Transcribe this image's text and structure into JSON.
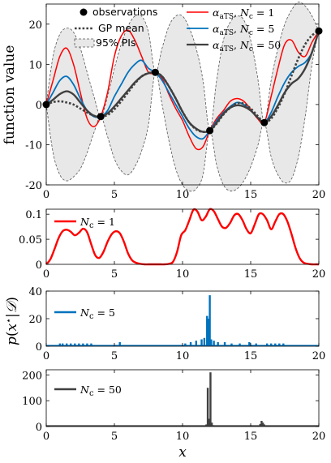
{
  "chart_data": [
    {
      "type": "line",
      "ylabel": "function value",
      "xlim": [
        0,
        20
      ],
      "ylim": [
        -20,
        25
      ],
      "xticks": [
        0,
        5,
        10,
        15,
        20
      ],
      "yticks": [
        -20,
        -10,
        0,
        10,
        20
      ],
      "legend": {
        "placement": "top",
        "entries": [
          "observations",
          "GP mean",
          "95% PIs",
          "α_aTS, N_c = 1",
          "α_aTS, N_c = 5",
          "α_aTS, N_c = 50"
        ]
      },
      "observations": {
        "x": [
          0,
          4,
          8,
          12,
          16,
          20
        ],
        "y": [
          0,
          -3,
          8,
          -6.5,
          -4.5,
          18.3
        ]
      },
      "gp_mean": {
        "x": [
          0,
          0.5,
          1,
          1.5,
          2,
          2.5,
          3,
          3.5,
          4,
          4.5,
          5,
          5.5,
          6,
          6.5,
          7,
          7.5,
          8,
          8.5,
          9,
          9.5,
          10,
          10.5,
          11,
          11.5,
          12,
          12.5,
          13,
          13.5,
          14,
          14.5,
          15,
          15.5,
          16,
          16.5,
          17,
          17.5,
          18,
          18.5,
          19,
          19.5,
          20
        ],
        "y": [
          0,
          0.6,
          0.8,
          0.5,
          0,
          -1,
          -2,
          -2.8,
          -3,
          -2.6,
          -1.2,
          0.8,
          3,
          5.2,
          7,
          7.8,
          8,
          7,
          4.5,
          1.5,
          -1.8,
          -4.5,
          -6.2,
          -6.8,
          -6.5,
          -4.8,
          -2.5,
          -0.8,
          0.3,
          0.2,
          -1,
          -2.8,
          -4.5,
          -3.5,
          -0.8,
          2.8,
          7.2,
          11.5,
          15,
          17.2,
          18.3
        ]
      },
      "pi95": {
        "upper": [
          0,
          12,
          17.5,
          19,
          18,
          14,
          8,
          2,
          -3,
          2,
          9,
          15,
          19.5,
          22,
          22,
          18,
          8,
          14,
          19.5,
          22,
          22,
          19,
          14,
          6,
          -6.5,
          6,
          16,
          20.5,
          22,
          21,
          16,
          7,
          -4.5,
          6,
          14,
          20,
          23.5,
          25.5,
          24.5,
          22,
          18.3
        ],
        "lower": [
          0,
          -12,
          -17.5,
          -19,
          -18,
          -16,
          -12,
          -7,
          -3,
          -8,
          -13.5,
          -16.5,
          -17.5,
          -15.5,
          -11.5,
          -5,
          8,
          0,
          -9,
          -16,
          -20,
          -21.5,
          -21,
          -17.5,
          -6.5,
          -15,
          -20,
          -21.5,
          -21,
          -19,
          -15.5,
          -10.5,
          -4.5,
          -13,
          -17.5,
          -19.5,
          -18.5,
          -13,
          -3,
          10,
          18.3
        ]
      },
      "series": [
        {
          "name": "α_aTS, N_c = 1",
          "color": "#ff0000",
          "x": [
            0,
            0.5,
            1,
            1.5,
            2,
            2.5,
            3,
            3.5,
            4,
            4.5,
            5,
            5.5,
            6,
            6.5,
            7,
            7.5,
            8,
            8.5,
            9,
            9.5,
            10,
            10.5,
            11,
            11.5,
            12,
            12.5,
            13,
            13.5,
            14,
            14.5,
            15,
            15.5,
            16,
            16.5,
            17,
            17.5,
            18,
            18.5,
            19,
            19.5,
            20
          ],
          "y": [
            0,
            6,
            12,
            14,
            10,
            3,
            -3.5,
            -5.5,
            -3,
            3,
            12,
            17,
            18.5,
            16,
            12,
            8,
            7.8,
            6.5,
            2.5,
            -1,
            -4,
            -8,
            -11,
            -10.5,
            -6.5,
            -3.5,
            -1.5,
            0.8,
            1.5,
            0.8,
            -1.2,
            -3.5,
            -4.5,
            2,
            9,
            15,
            16,
            13,
            12,
            15.5,
            18.3
          ]
        },
        {
          "name": "α_aTS, N_c = 5",
          "color": "#0072bd",
          "x": [
            0,
            0.5,
            1,
            1.5,
            2,
            2.5,
            3,
            3.5,
            4,
            4.5,
            5,
            5.5,
            6,
            6.5,
            7,
            7.5,
            8,
            8.5,
            9,
            9.5,
            10,
            10.5,
            11,
            11.5,
            12,
            12.5,
            13,
            13.5,
            14,
            14.5,
            15,
            15.5,
            16,
            16.5,
            17,
            17.5,
            18,
            18.5,
            19,
            19.5,
            20
          ],
          "y": [
            0,
            3,
            6,
            7,
            5,
            1.5,
            -1.5,
            -3,
            -3,
            -1.5,
            2,
            5,
            8,
            10,
            11,
            9,
            8,
            6,
            3,
            0,
            -3,
            -6,
            -8,
            -8.5,
            -6.5,
            -4,
            -2,
            -0.5,
            0.5,
            0,
            -1.5,
            -3.2,
            -4.5,
            -2,
            2,
            5.5,
            8,
            9.5,
            10.5,
            13,
            18.3
          ]
        },
        {
          "name": "α_aTS, N_c = 50",
          "color": "#404040",
          "x": [
            0,
            0.5,
            1,
            1.5,
            2,
            2.5,
            3,
            3.5,
            4,
            4.5,
            5,
            5.5,
            6,
            6.5,
            7,
            7.5,
            8,
            8.5,
            9,
            9.5,
            10,
            10.5,
            11,
            11.5,
            12,
            12.5,
            13,
            13.5,
            14,
            14.5,
            15,
            15.5,
            16,
            16.5,
            17,
            17.5,
            18,
            18.5,
            19,
            19.5,
            20
          ],
          "y": [
            0,
            1.2,
            2.6,
            3.3,
            2.5,
            0.5,
            -1.5,
            -2.8,
            -3,
            -2.2,
            -0.5,
            1.5,
            3.5,
            5.5,
            7,
            7.8,
            8,
            7,
            4.5,
            1.5,
            -1.8,
            -4.5,
            -6,
            -6.8,
            -6.5,
            -4.5,
            -2.3,
            -0.8,
            -0.2,
            -0.5,
            -1.5,
            -3.2,
            -4.5,
            -3,
            -0.2,
            3,
            5.2,
            6.5,
            9,
            13,
            18.3
          ]
        }
      ]
    },
    {
      "type": "line",
      "xlim": [
        0,
        20
      ],
      "ylim": [
        0,
        0.11
      ],
      "xticks": [
        0,
        5,
        10,
        15,
        20
      ],
      "yticks": [
        0,
        0.05,
        0.1
      ],
      "yticklabels": [
        "0",
        "0.05",
        "0.1"
      ],
      "legend": {
        "placement": "top-left",
        "entries": [
          "N_c = 1"
        ]
      },
      "series": [
        {
          "name": "N_c = 1",
          "color": "#ff0000",
          "x": [
            0,
            0.3,
            0.6,
            0.9,
            1.2,
            1.5,
            1.8,
            2.1,
            2.4,
            2.7,
            3.0,
            3.3,
            3.6,
            3.9,
            4.2,
            4.5,
            4.8,
            5.1,
            5.4,
            5.7,
            6.0,
            6.3,
            6.6,
            6.9,
            7.2,
            7.5,
            7.8,
            8.1,
            8.4,
            8.7,
            9.0,
            9.3,
            9.6,
            9.9,
            10.2,
            10.5,
            10.8,
            11.1,
            11.4,
            11.7,
            12.0,
            12.3,
            12.6,
            12.9,
            13.2,
            13.5,
            13.8,
            14.1,
            14.4,
            14.7,
            15.0,
            15.3,
            15.6,
            15.9,
            16.2,
            16.5,
            16.8,
            17.1,
            17.4,
            17.7,
            18.0,
            18.3,
            18.6,
            18.9,
            19.2,
            19.5,
            19.8,
            20.0
          ],
          "y": [
            0,
            0.01,
            0.03,
            0.052,
            0.066,
            0.069,
            0.065,
            0.058,
            0.063,
            0.071,
            0.064,
            0.04,
            0.018,
            0.013,
            0.025,
            0.045,
            0.06,
            0.066,
            0.062,
            0.045,
            0.022,
            0.008,
            0.003,
            0.001,
            0,
            0,
            0,
            0,
            0,
            0,
            0.001,
            0.005,
            0.025,
            0.058,
            0.068,
            0.088,
            0.109,
            0.105,
            0.088,
            0.095,
            0.11,
            0.106,
            0.09,
            0.075,
            0.073,
            0.083,
            0.098,
            0.1,
            0.088,
            0.07,
            0.062,
            0.08,
            0.1,
            0.1,
            0.088,
            0.07,
            0.085,
            0.1,
            0.1,
            0.085,
            0.06,
            0.032,
            0.012,
            0.003,
            0.001,
            0,
            0,
            0
          ]
        }
      ]
    },
    {
      "type": "bar",
      "ylabel": "p(x* | D)",
      "xlim": [
        0,
        20
      ],
      "ylim": [
        0,
        40
      ],
      "xticks": [
        0,
        5,
        10,
        15,
        20
      ],
      "yticks": [
        0,
        20,
        40
      ],
      "legend": {
        "placement": "top-left",
        "entries": [
          "N_c = 5"
        ]
      },
      "series": [
        {
          "name": "N_c = 5",
          "color": "#0072bd",
          "x": [
            1.0,
            1.2,
            1.5,
            1.8,
            2.1,
            2.4,
            2.7,
            3.0,
            3.3,
            5.4,
            10.2,
            10.6,
            11.0,
            11.4,
            11.6,
            11.8,
            11.9,
            12.0,
            12.1,
            12.3,
            12.6,
            13.1,
            13.6,
            14.2,
            14.9,
            15.4,
            16.2,
            16.5,
            16.8,
            17.1,
            17.4
          ],
          "values": [
            2,
            2,
            2,
            2,
            2,
            2,
            2,
            2,
            2,
            3,
            2,
            3,
            4,
            5,
            6,
            22,
            20,
            37,
            5,
            4,
            3,
            3,
            2,
            2,
            3,
            2,
            2,
            2,
            2,
            2,
            2
          ]
        }
      ]
    },
    {
      "type": "bar",
      "xlabel": "x",
      "xlim": [
        0,
        20
      ],
      "ylim": [
        0,
        220
      ],
      "xticks": [
        0,
        5,
        10,
        15,
        20
      ],
      "yticks": [
        0,
        100,
        200
      ],
      "legend": {
        "placement": "top-left",
        "entries": [
          "N_c = 50"
        ]
      },
      "series": [
        {
          "name": "N_c = 50",
          "color": "#404040",
          "x": [
            11.75,
            11.85,
            11.95,
            12.05,
            12.15,
            12.25,
            15.7,
            15.8,
            15.9,
            16.0,
            16.1
          ],
          "values": [
            8,
            150,
            30,
            210,
            15,
            5,
            10,
            22,
            15,
            8,
            4
          ]
        }
      ]
    }
  ]
}
